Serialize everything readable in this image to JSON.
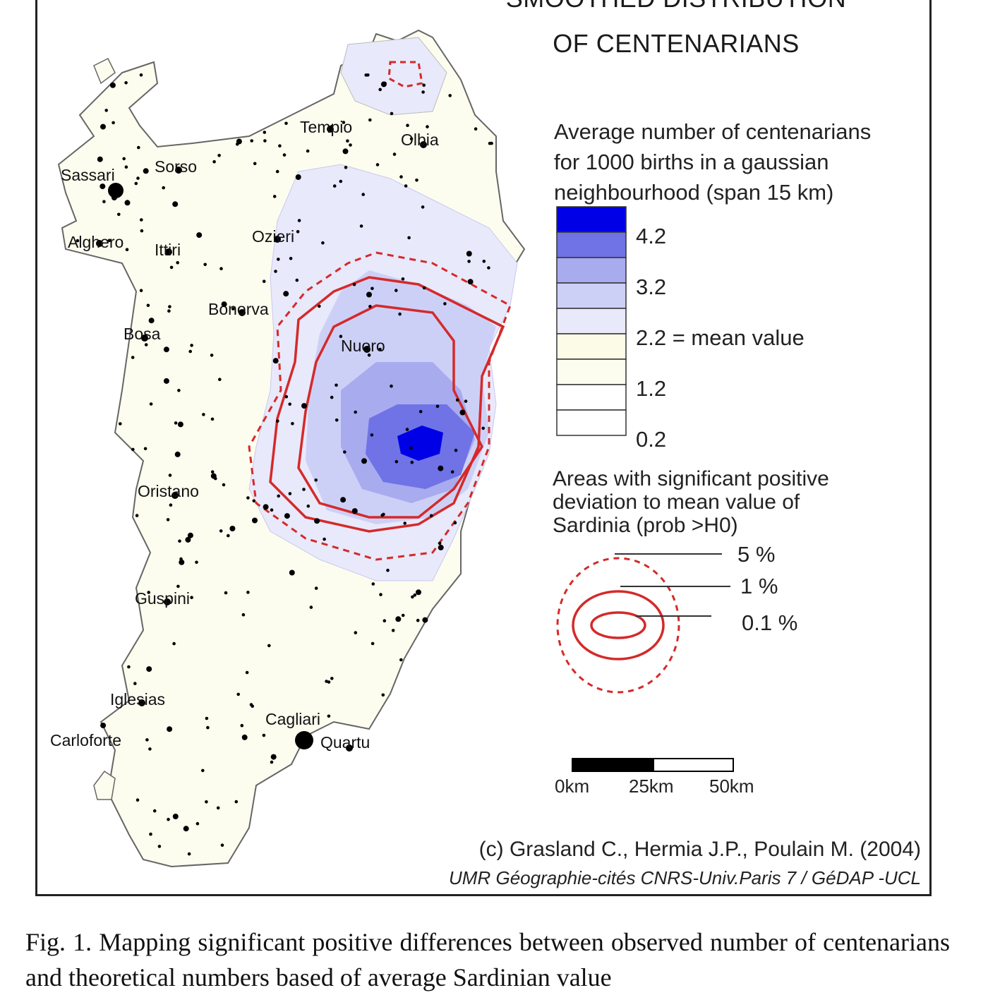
{
  "title": [
    "SMOOTHED DISTRIBUTION",
    "OF CENTENARIANS"
  ],
  "legend": {
    "heading": [
      "Average number of centenarians",
      "for 1000 births in a gaussian",
      "neighbourhood (span 15 km)"
    ],
    "class_colors": [
      "#0000e6",
      "#6f73e6",
      "#a9abef",
      "#cdd0f6",
      "#e8e9fb",
      "#fbfbe7",
      "#fdfdef",
      "#ffffff",
      "#ffffff"
    ],
    "values": [
      "4.2",
      "3.2",
      "2.2 = mean value",
      "1.2",
      "0.2"
    ]
  },
  "significance": {
    "heading": [
      "Areas with significant positive",
      "deviation to mean value of",
      "Sardinia (prob >H0)"
    ],
    "levels": [
      "5 %",
      "1 %",
      "0.1 %"
    ],
    "color": "#d42a2a"
  },
  "scale_bar": {
    "labels": [
      "0km",
      "25km",
      "50km"
    ]
  },
  "cities": [
    "Tempio",
    "Olbia",
    "Sassari",
    "Sorso",
    "Alghero",
    "Ittiri",
    "Ozieri",
    "Bonorva",
    "Bosa",
    "Nuoro",
    "Oristano",
    "Guspini",
    "Iglesias",
    "Carloforte",
    "Cagliari",
    "Quartu"
  ],
  "credit": "(c) Grasland C., Hermia J.P., Poulain M. (2004)",
  "credit_institution": "UMR Géographie-cités CNRS-Univ.Paris 7 / GéDAP -UCL",
  "caption": "Fig. 1. Mapping significant positive differences between observed number of centenarians and theoretical numbers based of average Sardinian value"
}
